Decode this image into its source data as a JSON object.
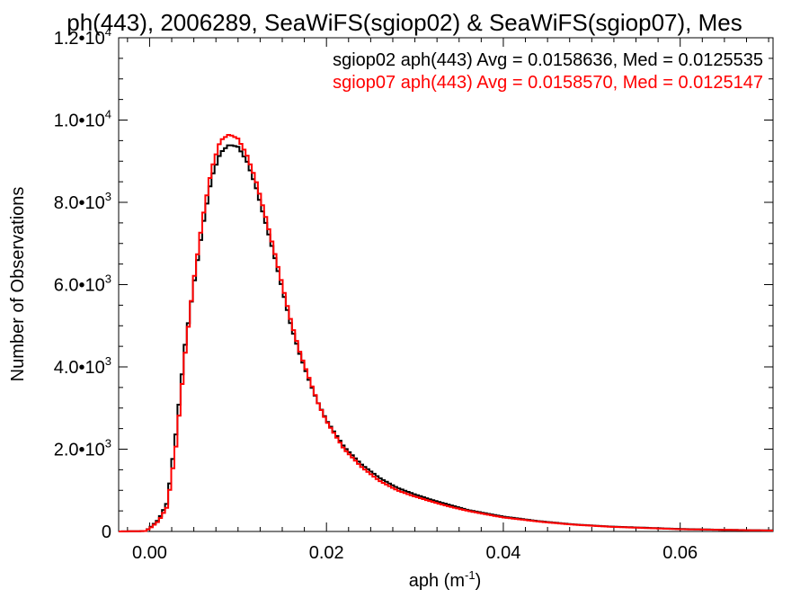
{
  "chart_data": {
    "type": "line",
    "title": "ph(443), 2006289, SeaWiFS(sgiop02) & SeaWiFS(sgiop07), Mes",
    "xlabel": "aph (m",
    "xlabel_sup": "-1",
    "xlabel_close": ")",
    "ylabel": "Number of Observations",
    "xlim": [
      -0.0035,
      0.0705
    ],
    "ylim": [
      0,
      12000
    ],
    "grid": false,
    "legend_position": "top-right",
    "x_ticks": [
      {
        "value": 0.0,
        "label": "0.00"
      },
      {
        "value": 0.02,
        "label": "0.02"
      },
      {
        "value": 0.04,
        "label": "0.04"
      },
      {
        "value": 0.06,
        "label": "0.06"
      }
    ],
    "y_ticks": [
      {
        "value": 0,
        "mantissa": "0",
        "exp": ""
      },
      {
        "value": 2000,
        "mantissa": "2.0•10",
        "exp": "3"
      },
      {
        "value": 4000,
        "mantissa": "4.0•10",
        "exp": "3"
      },
      {
        "value": 6000,
        "mantissa": "6.0•10",
        "exp": "3"
      },
      {
        "value": 8000,
        "mantissa": "8.0•10",
        "exp": "3"
      },
      {
        "value": 10000,
        "mantissa": "1.0•10",
        "exp": "4"
      },
      {
        "value": 12000,
        "mantissa": "1.2•10",
        "exp": "4"
      }
    ],
    "series": [
      {
        "name": "sgiop02",
        "color": "#000000",
        "legend_text": "sgiop02 aph(443) Avg = 0.0158636, Med = 0.0125535",
        "points": [
          [
            -0.0035,
            0
          ],
          [
            -0.0005,
            10
          ],
          [
            0.0,
            80
          ],
          [
            0.001,
            280
          ],
          [
            0.002,
            700
          ],
          [
            0.003,
            2400
          ],
          [
            0.004,
            4500
          ],
          [
            0.005,
            6000
          ],
          [
            0.006,
            7400
          ],
          [
            0.007,
            8600
          ],
          [
            0.008,
            9200
          ],
          [
            0.009,
            9400
          ],
          [
            0.01,
            9350
          ],
          [
            0.011,
            9000
          ],
          [
            0.012,
            8400
          ],
          [
            0.013,
            7600
          ],
          [
            0.014,
            6800
          ],
          [
            0.015,
            5900
          ],
          [
            0.016,
            5000
          ],
          [
            0.017,
            4300
          ],
          [
            0.018,
            3700
          ],
          [
            0.019,
            3150
          ],
          [
            0.02,
            2700
          ],
          [
            0.022,
            2050
          ],
          [
            0.024,
            1620
          ],
          [
            0.026,
            1300
          ],
          [
            0.028,
            1060
          ],
          [
            0.03,
            900
          ],
          [
            0.032,
            760
          ],
          [
            0.034,
            640
          ],
          [
            0.036,
            520
          ],
          [
            0.038,
            440
          ],
          [
            0.04,
            360
          ],
          [
            0.044,
            250
          ],
          [
            0.048,
            170
          ],
          [
            0.052,
            120
          ],
          [
            0.056,
            90
          ],
          [
            0.06,
            60
          ],
          [
            0.065,
            40
          ],
          [
            0.0705,
            25
          ]
        ]
      },
      {
        "name": "sgiop07",
        "color": "#ff0000",
        "legend_text": "sgiop07 aph(443) Avg = 0.0158570, Med = 0.0125147",
        "points": [
          [
            -0.0035,
            0
          ],
          [
            -0.0005,
            10
          ],
          [
            0.0,
            70
          ],
          [
            0.001,
            250
          ],
          [
            0.002,
            600
          ],
          [
            0.003,
            2100
          ],
          [
            0.004,
            4300
          ],
          [
            0.005,
            6100
          ],
          [
            0.006,
            7600
          ],
          [
            0.007,
            8800
          ],
          [
            0.008,
            9500
          ],
          [
            0.009,
            9650
          ],
          [
            0.01,
            9550
          ],
          [
            0.011,
            9150
          ],
          [
            0.012,
            8550
          ],
          [
            0.013,
            7750
          ],
          [
            0.014,
            6900
          ],
          [
            0.015,
            6000
          ],
          [
            0.016,
            5100
          ],
          [
            0.017,
            4350
          ],
          [
            0.018,
            3750
          ],
          [
            0.019,
            3150
          ],
          [
            0.02,
            2680
          ],
          [
            0.022,
            2000
          ],
          [
            0.024,
            1560
          ],
          [
            0.026,
            1230
          ],
          [
            0.028,
            1000
          ],
          [
            0.03,
            850
          ],
          [
            0.032,
            720
          ],
          [
            0.034,
            600
          ],
          [
            0.036,
            500
          ],
          [
            0.038,
            420
          ],
          [
            0.04,
            340
          ],
          [
            0.044,
            240
          ],
          [
            0.048,
            165
          ],
          [
            0.052,
            115
          ],
          [
            0.056,
            85
          ],
          [
            0.06,
            55
          ],
          [
            0.065,
            38
          ],
          [
            0.0705,
            22
          ]
        ]
      }
    ]
  }
}
